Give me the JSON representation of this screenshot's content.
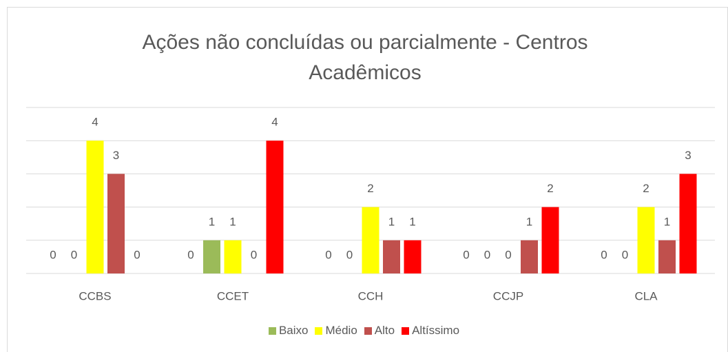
{
  "chart_data": {
    "type": "bar",
    "title": "Ações não concluídas ou parcialmente - Centros Acadêmicos",
    "categories": [
      "CCBS",
      "CCET",
      "CCH",
      "CCJP",
      "CLA"
    ],
    "series": [
      {
        "name": null,
        "color": null,
        "values": [
          0,
          0,
          0,
          0,
          0
        ]
      },
      {
        "name": "Baixo",
        "color": "#9bbb59",
        "values": [
          0,
          1,
          0,
          0,
          0
        ]
      },
      {
        "name": "Médio",
        "color": "#ffff00",
        "values": [
          4,
          1,
          2,
          0,
          2
        ]
      },
      {
        "name": "Alto",
        "color": "#c0504d",
        "values": [
          3,
          0,
          1,
          1,
          1
        ]
      },
      {
        "name": "Altíssimo",
        "color": "#ff0000",
        "values": [
          0,
          4,
          1,
          2,
          3
        ]
      }
    ],
    "ylim": [
      0,
      5
    ],
    "yticks": [
      0,
      1,
      2,
      3,
      4,
      5
    ],
    "grid": true,
    "legend": "bottom"
  }
}
